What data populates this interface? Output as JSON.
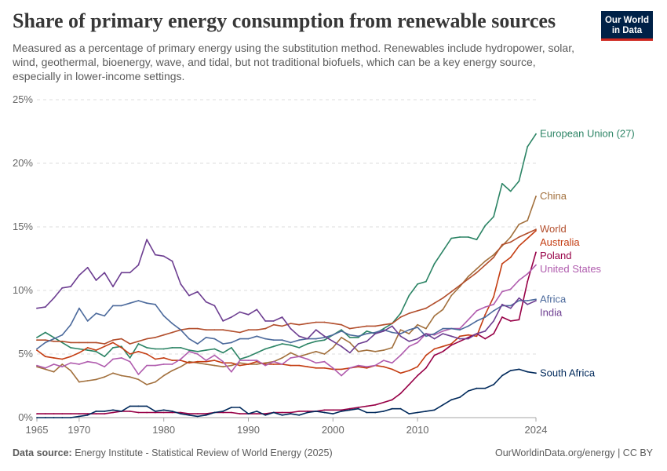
{
  "header": {
    "title": "Share of primary energy consumption from renewable sources",
    "subtitle": "Measured as a percentage of primary energy using the substitution method. Renewables include hydropower, solar, wind, geothermal, bioenergy, wave, and tidal, but not traditional biofuels, which can be a key energy source, especially in lower-income settings."
  },
  "logo": {
    "line1": "Our World",
    "line2": "in Data"
  },
  "footer": {
    "source_label": "Data source:",
    "source_text": "Energy Institute - Statistical Review of World Energy (2025)",
    "site_text": "OurWorldinData.org/energy | CC BY"
  },
  "chart_data": {
    "type": "line",
    "title": "Share of primary energy consumption from renewable sources",
    "xlim": [
      1965,
      2024
    ],
    "ylim": [
      0,
      25
    ],
    "grid": true,
    "x_ticks": [
      1965,
      1970,
      1980,
      1990,
      2000,
      2010,
      2024
    ],
    "y_ticks": [
      {
        "value": 0,
        "label": "0%"
      },
      {
        "value": 5,
        "label": "5%"
      },
      {
        "value": 10,
        "label": "10%"
      },
      {
        "value": 15,
        "label": "15%"
      },
      {
        "value": 20,
        "label": "20%"
      },
      {
        "value": 25,
        "label": "25%"
      }
    ],
    "x": [
      1965,
      1966,
      1967,
      1968,
      1969,
      1970,
      1971,
      1972,
      1973,
      1974,
      1975,
      1976,
      1977,
      1978,
      1979,
      1980,
      1981,
      1982,
      1983,
      1984,
      1985,
      1986,
      1987,
      1988,
      1989,
      1990,
      1991,
      1992,
      1993,
      1994,
      1995,
      1996,
      1997,
      1998,
      1999,
      2000,
      2001,
      2002,
      2003,
      2004,
      2005,
      2006,
      2007,
      2008,
      2009,
      2010,
      2011,
      2012,
      2013,
      2014,
      2015,
      2016,
      2017,
      2018,
      2019,
      2020,
      2021,
      2022,
      2023,
      2024
    ],
    "series": [
      {
        "name": "European Union (27)",
        "color": "#2c8465",
        "values": [
          6.3,
          6.7,
          6.3,
          5.9,
          5.5,
          5.4,
          5.3,
          5.2,
          4.8,
          5.5,
          5.6,
          4.7,
          5.8,
          5.5,
          5.4,
          5.4,
          5.5,
          5.5,
          5.3,
          5.2,
          5.3,
          5.4,
          5.1,
          5.5,
          4.6,
          4.8,
          5.1,
          5.4,
          5.6,
          5.8,
          5.7,
          5.5,
          5.8,
          6.0,
          6.1,
          6.5,
          6.9,
          6.3,
          6.3,
          6.8,
          6.6,
          7.0,
          7.4,
          8.2,
          9.6,
          10.5,
          10.7,
          12.1,
          13.1,
          14.1,
          14.2,
          14.2,
          14.0,
          15.1,
          15.8,
          18.4,
          17.8,
          18.6,
          21.3,
          22.3
        ]
      },
      {
        "name": "China",
        "color": "#a2703d",
        "values": [
          4.0,
          3.8,
          3.6,
          4.2,
          3.7,
          2.8,
          2.9,
          3.0,
          3.2,
          3.5,
          3.3,
          3.2,
          3.0,
          2.6,
          2.8,
          3.3,
          3.7,
          4.0,
          4.4,
          4.3,
          4.2,
          4.1,
          4.0,
          4.1,
          4.3,
          4.2,
          4.2,
          4.3,
          4.4,
          4.7,
          5.1,
          4.8,
          5.0,
          5.2,
          5.0,
          5.5,
          6.3,
          5.9,
          5.2,
          5.3,
          5.2,
          5.3,
          5.5,
          6.9,
          6.6,
          7.3,
          7.0,
          8.0,
          8.5,
          9.6,
          10.3,
          11.1,
          11.7,
          12.3,
          12.8,
          13.5,
          14.2,
          15.2,
          15.5,
          17.4
        ]
      },
      {
        "name": "World",
        "color": "#b24e2c",
        "values": [
          6.1,
          6.1,
          6.0,
          6.0,
          5.9,
          5.9,
          5.9,
          5.9,
          5.8,
          6.1,
          6.2,
          5.8,
          6.0,
          6.2,
          6.3,
          6.5,
          6.7,
          6.9,
          7.0,
          7.0,
          6.9,
          6.9,
          6.9,
          6.8,
          6.7,
          6.9,
          6.9,
          7.0,
          7.3,
          7.2,
          7.4,
          7.3,
          7.4,
          7.5,
          7.5,
          7.4,
          7.3,
          7.0,
          7.1,
          7.2,
          7.2,
          7.3,
          7.4,
          7.9,
          8.2,
          8.4,
          8.6,
          9.0,
          9.4,
          9.9,
          10.4,
          10.9,
          11.4,
          12.0,
          12.6,
          13.6,
          13.8,
          14.2,
          14.5,
          14.8
        ]
      },
      {
        "name": "Australia",
        "color": "#c43d12",
        "values": [
          5.3,
          4.8,
          4.7,
          4.6,
          4.8,
          5.1,
          5.5,
          5.3,
          5.6,
          5.9,
          5.5,
          5.0,
          5.2,
          5.0,
          4.6,
          4.7,
          4.5,
          4.5,
          4.3,
          4.4,
          4.4,
          4.5,
          4.3,
          4.3,
          4.1,
          4.2,
          4.4,
          4.2,
          4.2,
          4.2,
          4.1,
          4.1,
          4.0,
          3.9,
          3.9,
          3.8,
          3.8,
          3.9,
          4.0,
          3.9,
          4.1,
          4.0,
          3.8,
          3.5,
          3.7,
          4.0,
          4.9,
          5.4,
          5.6,
          5.8,
          6.4,
          6.5,
          6.4,
          8.1,
          9.5,
          12.1,
          12.6,
          13.5,
          14.1,
          14.7
        ]
      },
      {
        "name": "Poland",
        "color": "#970046",
        "values": [
          0.3,
          0.3,
          0.3,
          0.3,
          0.3,
          0.3,
          0.3,
          0.3,
          0.3,
          0.4,
          0.5,
          0.5,
          0.4,
          0.4,
          0.4,
          0.4,
          0.4,
          0.4,
          0.3,
          0.3,
          0.3,
          0.4,
          0.4,
          0.4,
          0.3,
          0.3,
          0.3,
          0.3,
          0.4,
          0.4,
          0.4,
          0.5,
          0.5,
          0.5,
          0.6,
          0.6,
          0.6,
          0.7,
          0.8,
          0.9,
          1.0,
          1.2,
          1.4,
          1.9,
          2.6,
          3.3,
          3.9,
          4.9,
          5.2,
          5.7,
          6.0,
          6.3,
          6.6,
          6.2,
          6.6,
          7.9,
          7.6,
          7.7,
          10.7,
          13.0
        ]
      },
      {
        "name": "United States",
        "color": "#b05cae",
        "values": [
          4.1,
          3.9,
          4.2,
          4.0,
          4.3,
          4.2,
          4.4,
          4.3,
          4.0,
          4.6,
          4.7,
          4.4,
          3.4,
          4.1,
          4.1,
          4.2,
          4.2,
          4.6,
          5.2,
          5.0,
          4.5,
          4.9,
          4.4,
          3.6,
          4.5,
          4.5,
          4.5,
          4.1,
          4.4,
          4.2,
          4.7,
          4.8,
          4.6,
          4.3,
          4.4,
          3.9,
          3.3,
          3.9,
          4.1,
          4.0,
          4.1,
          4.5,
          4.3,
          4.9,
          5.6,
          5.9,
          6.6,
          6.5,
          6.8,
          7.0,
          7.0,
          7.7,
          8.4,
          8.7,
          8.9,
          9.9,
          10.1,
          10.8,
          11.3,
          12.0
        ]
      },
      {
        "name": "Africa",
        "color": "#4c6a9c",
        "values": [
          5.4,
          5.9,
          6.2,
          6.5,
          7.3,
          8.6,
          7.6,
          8.2,
          8.0,
          8.8,
          8.8,
          9.0,
          9.2,
          9.0,
          8.9,
          8.0,
          7.4,
          6.9,
          6.2,
          5.8,
          6.3,
          6.2,
          5.8,
          5.9,
          6.2,
          6.2,
          6.4,
          6.2,
          6.1,
          6.1,
          5.9,
          6.1,
          6.2,
          6.2,
          6.3,
          6.5,
          6.8,
          6.5,
          6.4,
          6.6,
          6.7,
          6.9,
          6.7,
          6.6,
          6.9,
          7.1,
          6.4,
          6.6,
          7.0,
          7.0,
          6.9,
          7.2,
          7.6,
          7.9,
          8.4,
          8.8,
          8.8,
          9.2,
          9.2,
          9.3
        ]
      },
      {
        "name": "India",
        "color": "#6d3e91",
        "values": [
          8.6,
          8.7,
          9.4,
          10.2,
          10.3,
          11.2,
          11.8,
          10.8,
          11.4,
          10.3,
          11.4,
          11.4,
          12.0,
          14.0,
          12.8,
          12.7,
          12.3,
          10.5,
          9.6,
          9.9,
          9.1,
          8.8,
          7.6,
          7.9,
          8.3,
          8.1,
          8.5,
          7.6,
          7.6,
          7.9,
          7.0,
          6.4,
          6.2,
          6.9,
          6.4,
          6.0,
          5.6,
          5.1,
          5.8,
          6.0,
          6.6,
          6.8,
          7.2,
          6.4,
          6.0,
          6.2,
          6.6,
          6.2,
          6.6,
          6.4,
          6.2,
          6.2,
          6.6,
          6.8,
          7.6,
          8.9,
          8.6,
          9.4,
          8.9,
          9.2
        ]
      },
      {
        "name": "South Africa",
        "color": "#00295b",
        "values": [
          0.0,
          0.0,
          0.0,
          0.0,
          0.0,
          0.1,
          0.2,
          0.5,
          0.5,
          0.6,
          0.5,
          0.9,
          0.9,
          0.9,
          0.5,
          0.6,
          0.5,
          0.3,
          0.2,
          0.1,
          0.2,
          0.4,
          0.5,
          0.8,
          0.8,
          0.3,
          0.5,
          0.2,
          0.4,
          0.2,
          0.3,
          0.2,
          0.4,
          0.5,
          0.4,
          0.3,
          0.5,
          0.6,
          0.7,
          0.4,
          0.4,
          0.5,
          0.7,
          0.7,
          0.3,
          0.4,
          0.5,
          0.6,
          1.0,
          1.4,
          1.6,
          2.1,
          2.3,
          2.3,
          2.6,
          3.3,
          3.7,
          3.8,
          3.6,
          3.5
        ]
      }
    ]
  }
}
